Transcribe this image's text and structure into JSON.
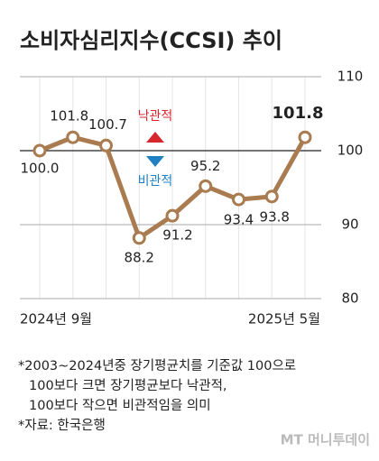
{
  "chart_data": {
    "type": "line",
    "title": "소비자심리지수(CCSI) 추이",
    "categories": [
      "2024년 9월",
      null,
      null,
      null,
      null,
      null,
      null,
      null,
      "2025년 5월"
    ],
    "series": [
      {
        "name": "소비자심리지수",
        "color": "#a97b4f",
        "values": [
          100.0,
          101.8,
          100.7,
          88.2,
          91.2,
          95.2,
          93.4,
          93.8,
          101.8
        ],
        "value_labels": [
          "100.0",
          "101.8",
          "100.7",
          "88.2",
          "91.2",
          "95.2",
          "93.4",
          "93.8",
          "101.8"
        ]
      }
    ],
    "ylim": [
      80,
      110
    ],
    "yticks": [
      80,
      90,
      100,
      110
    ],
    "grid": true,
    "reference_line": 100,
    "annotations": [
      {
        "text": "낙관적",
        "color": "#d7262e"
      },
      {
        "text": "비관적",
        "color": "#1e7fc2"
      }
    ],
    "notes": [
      "*2003~2024년중 장기평균치를 기준값 100으로",
      "100보다 크면 장기평균보다 낙관적,",
      "100보다 작으면 비관적임을 의미",
      "*자료: 한국은행"
    ],
    "watermark": "MT 머니투데이"
  }
}
